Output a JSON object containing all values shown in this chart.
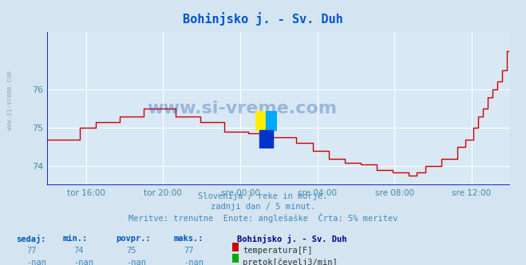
{
  "title": "Bohinjsko j. - Sv. Duh",
  "bg_color": "#d4e4f0",
  "plot_bg_color": "#d8e8f4",
  "grid_color": "#ffffff",
  "line_color": "#cc0000",
  "axis_color": "#0000cc",
  "xlabel_color": "#4488aa",
  "text_color": "#4488bb",
  "ylim": [
    73.5,
    77.5
  ],
  "yticks": [
    74,
    75,
    76
  ],
  "xtick_labels": [
    "tor 16:00",
    "tor 20:00",
    "sre 00:00",
    "sre 04:00",
    "sre 08:00",
    "sre 12:00"
  ],
  "subtitle1": "Slovenija / reke in morje.",
  "subtitle2": "zadnji dan / 5 minut.",
  "subtitle3": "Meritve: trenutne  Enote: anglešaške  Črta: 5% meritev",
  "legend_station": "Bohinjsko j. - Sv. Duh",
  "legend_temp": "temperatura[F]",
  "legend_flow": "pretok[čevelj3/min]",
  "stat_headers": [
    "sedaj:",
    "min.:",
    "povpr.:",
    "maks.:"
  ],
  "stat_temp": [
    "77",
    "74",
    "75",
    "77"
  ],
  "stat_flow": [
    "-nan",
    "-nan",
    "-nan",
    "-nan"
  ],
  "watermark_text": "www.si-vreme.com",
  "footnote_color": "#4488bb",
  "header_color": "#0055bb",
  "left_watermark": "www.si-vreme.com"
}
